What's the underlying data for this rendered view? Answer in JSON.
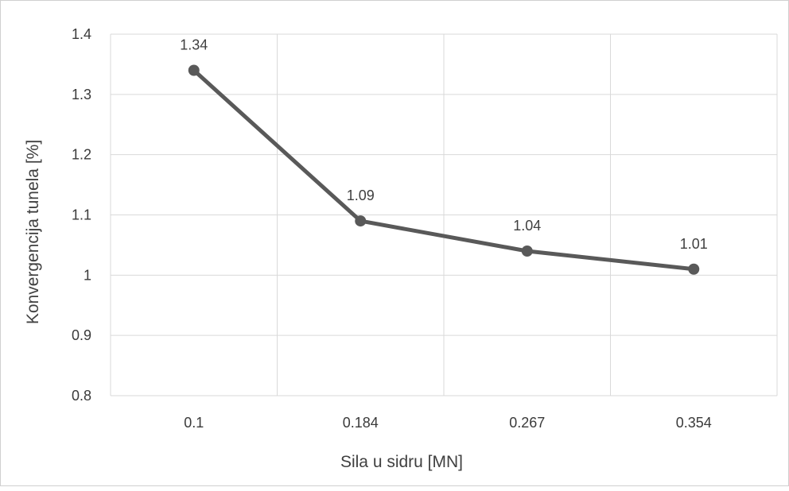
{
  "chart_data": {
    "type": "line",
    "title": "",
    "xlabel": "Sila u sidru [MN]",
    "ylabel": "Konvergencija tunela [%]",
    "categories": [
      "0.1",
      "0.184",
      "0.267",
      "0.354"
    ],
    "y_ticks": [
      "0.8",
      "0.9",
      "1",
      "1.1",
      "1.2",
      "1.3",
      "1.4"
    ],
    "ylim": [
      0.8,
      1.4
    ],
    "y_step": 0.1,
    "grid": true,
    "legend": "none",
    "series": [
      {
        "values": [
          1.34,
          1.09,
          1.04,
          1.01
        ],
        "labels": [
          "1.34",
          "1.09",
          "1.04",
          "1.01"
        ],
        "color": "#595959"
      }
    ]
  }
}
